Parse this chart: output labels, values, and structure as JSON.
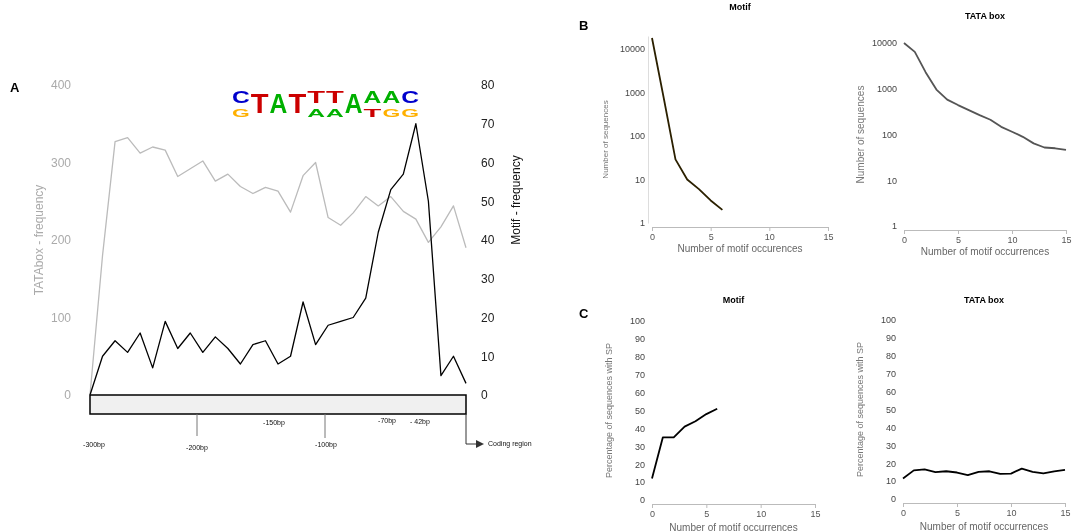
{
  "chart_data": [
    {
      "type": "line",
      "ylabel": "TATAbox - frequency",
      "y2label": "Motif - frequency",
      "categories": [
        null,
        null,
        null,
        null,
        null,
        null,
        null,
        null,
        null,
        null,
        null,
        null,
        null,
        null,
        null,
        null,
        null,
        null,
        null,
        null,
        null,
        null,
        null,
        null,
        null,
        null,
        null,
        null,
        null,
        null,
        null
      ],
      "series": [
        {
          "color": "#bbbbbb",
          "values": [
            0,
            180,
            327,
            332,
            312,
            320,
            316,
            282,
            292,
            302,
            276,
            285,
            269,
            260,
            268,
            263,
            236,
            283,
            300,
            229,
            219,
            235,
            256,
            244,
            256,
            237,
            227,
            197,
            217,
            244,
            190
          ]
        },
        {
          "color": "#000000",
          "axis": "y2",
          "values": [
            0,
            10,
            14,
            11,
            16,
            7,
            19,
            12,
            16,
            11,
            15,
            12,
            8,
            13,
            14,
            8,
            10,
            24,
            13,
            18,
            19,
            20,
            25,
            42,
            53,
            57,
            70,
            50,
            5,
            10,
            3
          ]
        }
      ],
      "ylim": [
        0,
        400
      ],
      "yticks": [
        0,
        100,
        200,
        300,
        400
      ],
      "y2lim": [
        0,
        80
      ],
      "y2ticks": [
        0,
        10,
        20,
        30,
        40,
        50,
        60,
        70,
        80
      ],
      "annotations": [
        "A",
        "C",
        "G",
        "T",
        "A",
        "T",
        "T",
        "A",
        "T",
        "A",
        "A",
        "A",
        "T",
        "A",
        "G",
        "C",
        "G",
        "-300bp",
        "-200bp",
        "-150bp",
        "-100bp",
        "-70bp",
        "- 42bp",
        "Coding region"
      ]
    },
    {
      "type": "line",
      "title": "Motif",
      "xlabel": "Number of motif occurences",
      "ylabel": "Number of sequences",
      "log": "y",
      "x": [
        0,
        1,
        2,
        3,
        4,
        5,
        6
      ],
      "series": [
        {
          "color": "#2b2000",
          "values": [
            18000,
            750,
            29,
            10,
            6,
            3.3,
            2
          ]
        }
      ],
      "xlim": [
        0,
        15
      ],
      "xticks": [
        0,
        5,
        10,
        15
      ],
      "ylim": [
        1,
        20000
      ],
      "yticks": [
        1,
        10,
        100,
        1000,
        10000
      ],
      "annotations": [
        "B"
      ]
    },
    {
      "type": "line",
      "title": "TATA box",
      "xlabel": "Number of motif occurrences",
      "ylabel": "Number of sequences",
      "log": "y",
      "x": [
        0,
        1,
        2,
        3,
        4,
        5,
        6,
        7,
        8,
        9,
        10,
        11,
        12,
        13,
        14,
        15
      ],
      "series": [
        {
          "color": "#555555",
          "values": [
            10000,
            6400,
            2300,
            960,
            580,
            440,
            340,
            265,
            210,
            147,
            115,
            89,
            64,
            52,
            50,
            46
          ]
        }
      ],
      "xlim": [
        0,
        15
      ],
      "xticks": [
        0,
        5,
        10,
        15
      ],
      "ylim": [
        1,
        10000
      ],
      "yticks": [
        1,
        10,
        100,
        1000,
        10000
      ]
    },
    {
      "type": "line",
      "title": "Motif",
      "xlabel": "Number of motif occurrences",
      "ylabel": "Percentage of sequences with SP",
      "x": [
        0,
        1,
        2,
        3,
        4,
        5,
        6
      ],
      "series": [
        {
          "color": "#000000",
          "values": [
            12,
            35,
            35,
            41,
            44,
            48,
            51
          ]
        }
      ],
      "xlim": [
        0,
        15
      ],
      "xticks": [
        0,
        5,
        10,
        15
      ],
      "ylim": [
        0,
        100
      ],
      "yticks": [
        0,
        10,
        20,
        30,
        40,
        50,
        60,
        70,
        80,
        90,
        100
      ],
      "annotations": [
        "C"
      ]
    },
    {
      "type": "line",
      "title": "TATA box",
      "xlabel": "Number of motif occurrences",
      "ylabel": "Percentage of sequences with SP",
      "x": [
        0,
        1,
        2,
        3,
        4,
        5,
        6,
        7,
        8,
        9,
        10,
        11,
        12,
        13,
        14,
        15
      ],
      "series": [
        {
          "color": "#000000",
          "values": [
            11.5,
            16,
            16.5,
            15,
            15.5,
            14.8,
            13.3,
            15.2,
            15.5,
            14,
            14.2,
            17,
            15.2,
            14.3,
            15.4,
            16.3
          ]
        }
      ],
      "xlim": [
        0,
        15
      ],
      "xticks": [
        0,
        5,
        10,
        15
      ],
      "ylim": [
        0,
        100
      ],
      "yticks": [
        0,
        10,
        20,
        30,
        40,
        50,
        60,
        70,
        80,
        90,
        100
      ]
    }
  ]
}
